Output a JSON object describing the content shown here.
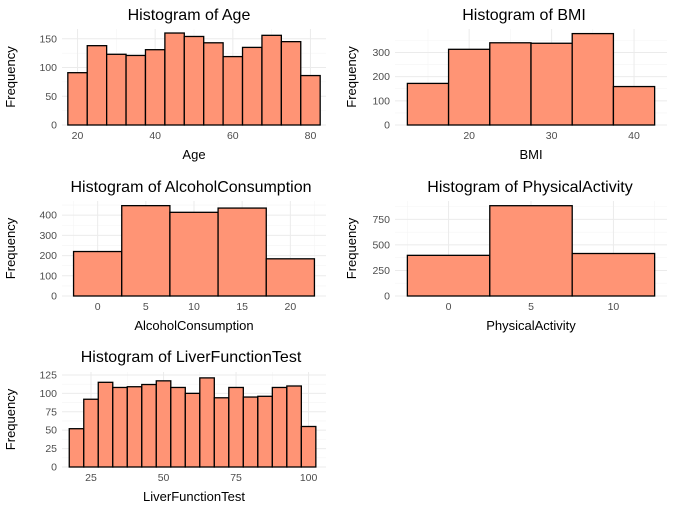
{
  "chart_data": [
    {
      "type": "bar",
      "title": "Histogram of Age",
      "xlabel": "Age",
      "ylabel": "Frequency",
      "bin_edges": [
        17.5,
        22.5,
        27.5,
        32.5,
        37.5,
        42.5,
        47.5,
        52.5,
        57.5,
        62.5,
        67.5,
        72.5,
        77.5,
        82.5
      ],
      "values": [
        91,
        138,
        123,
        121,
        131,
        160,
        154,
        143,
        119,
        135,
        156,
        145,
        86
      ],
      "xlim": [
        16,
        84
      ],
      "ylim": [
        0,
        167
      ],
      "x_ticks": [
        20,
        40,
        60,
        80
      ],
      "y_ticks": [
        0,
        50,
        100,
        150
      ],
      "color": "#FF9475"
    },
    {
      "type": "bar",
      "title": "Histogram of BMI",
      "xlabel": "BMI",
      "ylabel": "Frequency",
      "bin_edges": [
        12.5,
        17.5,
        22.5,
        27.5,
        32.5,
        37.5,
        42.5
      ],
      "values": [
        172,
        313,
        340,
        338,
        378,
        159
      ],
      "xlim": [
        11,
        44
      ],
      "ylim": [
        0,
        397
      ],
      "x_ticks": [
        20,
        30,
        40
      ],
      "y_ticks": [
        0,
        100,
        200,
        300
      ],
      "color": "#FF9475"
    },
    {
      "type": "bar",
      "title": "Histogram of AlcoholConsumption",
      "xlabel": "AlcoholConsumption",
      "ylabel": "Frequency",
      "bin_edges": [
        -2.5,
        2.5,
        7.5,
        12.5,
        17.5,
        22.5
      ],
      "values": [
        220,
        447,
        414,
        435,
        184
      ],
      "xlim": [
        -3.7,
        23.7
      ],
      "ylim": [
        0,
        470
      ],
      "x_ticks": [
        0,
        5,
        10,
        15,
        20
      ],
      "y_ticks": [
        0,
        100,
        200,
        300,
        400
      ],
      "color": "#FF9475"
    },
    {
      "type": "bar",
      "title": "Histogram of PhysicalActivity",
      "xlabel": "PhysicalActivity",
      "ylabel": "Frequency",
      "bin_edges": [
        -2.5,
        2.5,
        7.5,
        12.5
      ],
      "values": [
        398,
        884,
        416
      ],
      "xlim": [
        -3.25,
        13.25
      ],
      "ylim": [
        0,
        930
      ],
      "x_ticks": [
        0,
        5,
        10
      ],
      "y_ticks": [
        0,
        250,
        500,
        750
      ],
      "color": "#FF9475"
    },
    {
      "type": "bar",
      "title": "Histogram of LiverFunctionTest",
      "xlabel": "LiverFunctionTest",
      "ylabel": "Frequency",
      "bin_edges": [
        17.5,
        22.5,
        27.5,
        32.5,
        37.5,
        42.5,
        47.5,
        52.5,
        57.5,
        62.5,
        67.5,
        72.5,
        77.5,
        82.5,
        87.5,
        92.5,
        97.5,
        102.5
      ],
      "values": [
        52,
        92,
        115,
        108,
        109,
        112,
        117,
        108,
        100,
        121,
        94,
        108,
        95,
        96,
        108,
        110,
        55
      ],
      "xlim": [
        15,
        106
      ],
      "ylim": [
        0,
        129
      ],
      "x_ticks": [
        25,
        50,
        75,
        100
      ],
      "y_ticks": [
        0,
        25,
        50,
        75,
        100,
        125
      ],
      "color": "#FF9475"
    }
  ]
}
